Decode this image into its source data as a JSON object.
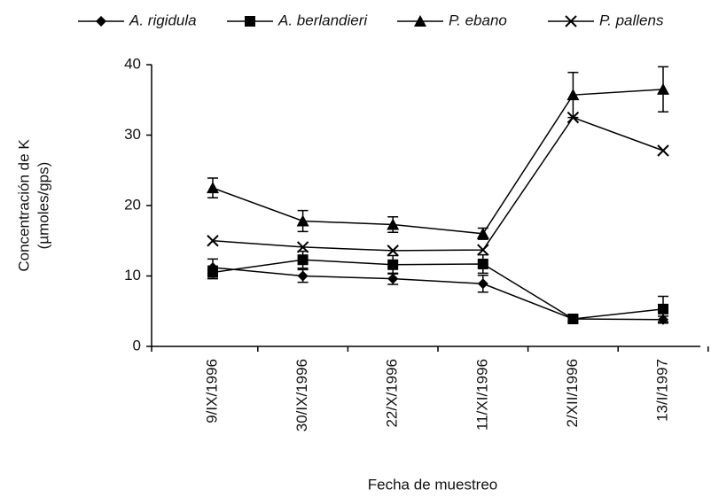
{
  "chart_data": {
    "type": "line",
    "y_label": [
      "Concentración de K",
      "(µmoles/gps)"
    ],
    "x_label": "Fecha de muestreo",
    "categories": [
      "9/IX/1996",
      "30/IX/1996",
      "22/X/1996",
      "11/XI/1996",
      "2/XII/1996",
      "13/I/1997"
    ],
    "series": [
      {
        "name": "A. rigidula",
        "color": "#000000",
        "marker": "diamond",
        "values": [
          11.2,
          10,
          9.6,
          8.9,
          3.9,
          3.8
        ],
        "errors": [
          1.2,
          0.9,
          0.8,
          1.2,
          0.4,
          0.5
        ]
      },
      {
        "name": "A. berlandieri",
        "color": "#000000",
        "marker": "square",
        "values": [
          10.5,
          12.3,
          11.6,
          11.7,
          3.9,
          5.3
        ],
        "errors": [
          0.9,
          1.2,
          1.3,
          1.3,
          0.5,
          1.8
        ]
      },
      {
        "name": "P. ebano",
        "color": "#000000",
        "marker": "triangle",
        "values": [
          22.5,
          17.8,
          17.3,
          16,
          35.7,
          36.5
        ],
        "errors": [
          1.4,
          1.5,
          1.1,
          0.8,
          3.2,
          3.2
        ]
      },
      {
        "name": "P. pallens",
        "color": "#000000",
        "marker": "x",
        "values": [
          15,
          14.1,
          13.6,
          13.7,
          32.5,
          27.8
        ]
      }
    ],
    "ylim": [
      0,
      40
    ],
    "yticks": [
      0,
      10,
      20,
      30,
      40
    ],
    "legend": "top"
  }
}
